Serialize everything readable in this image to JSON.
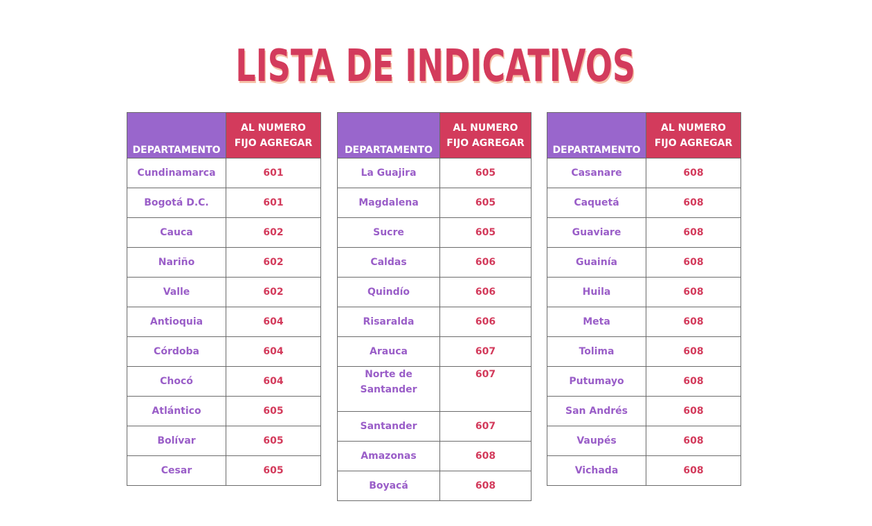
{
  "title": "LISTA DE INDICATIVOS",
  "colors": {
    "title": "#d33b5c",
    "title_shadow": "#f6c2a8",
    "header_department_bg": "#9966cc",
    "header_number_bg": "#d33b5c",
    "department_text": "#9a5ec8",
    "number_text": "#d33b5c"
  },
  "header": {
    "department": "DEPARTAMENTO",
    "number_line1": "AL NUMERO",
    "number_line2": "FIJO AGREGAR"
  },
  "tables": [
    {
      "rows": [
        {
          "department": "Cundinamarca",
          "code": "601"
        },
        {
          "department": "Bogotá D.C.",
          "code": "601"
        },
        {
          "department": "Cauca",
          "code": "602"
        },
        {
          "department": "Nariño",
          "code": "602"
        },
        {
          "department": "Valle",
          "code": "602"
        },
        {
          "department": "Antioquia",
          "code": "604"
        },
        {
          "department": "Córdoba",
          "code": "604"
        },
        {
          "department": "Chocó",
          "code": "604"
        },
        {
          "department": "Atlántico",
          "code": "605"
        },
        {
          "department": "Bolívar",
          "code": "605"
        },
        {
          "department": "Cesar",
          "code": "605"
        }
      ]
    },
    {
      "rows": [
        {
          "department": "La Guajira",
          "code": "605"
        },
        {
          "department": "Magdalena",
          "code": "605"
        },
        {
          "department": "Sucre",
          "code": "605"
        },
        {
          "department": "Caldas",
          "code": "606"
        },
        {
          "department": "Quindío",
          "code": "606"
        },
        {
          "department": "Risaralda",
          "code": "606"
        },
        {
          "department": "Arauca",
          "code": "607"
        },
        {
          "department": "Norte de Santander",
          "code": "607"
        },
        {
          "department": "Santander",
          "code": "607"
        },
        {
          "department": "Amazonas",
          "code": "608"
        },
        {
          "department": "Boyacá",
          "code": "608"
        }
      ]
    },
    {
      "rows": [
        {
          "department": "Casanare",
          "code": "608"
        },
        {
          "department": "Caquetá",
          "code": "608"
        },
        {
          "department": "Guaviare",
          "code": "608"
        },
        {
          "department": "Guainía",
          "code": "608"
        },
        {
          "department": "Huila",
          "code": "608"
        },
        {
          "department": "Meta",
          "code": "608"
        },
        {
          "department": "Tolima",
          "code": "608"
        },
        {
          "department": "Putumayo",
          "code": "608"
        },
        {
          "department": "San Andrés",
          "code": "608"
        },
        {
          "department": "Vaupés",
          "code": "608"
        },
        {
          "department": "Vichada",
          "code": "608"
        }
      ]
    }
  ]
}
